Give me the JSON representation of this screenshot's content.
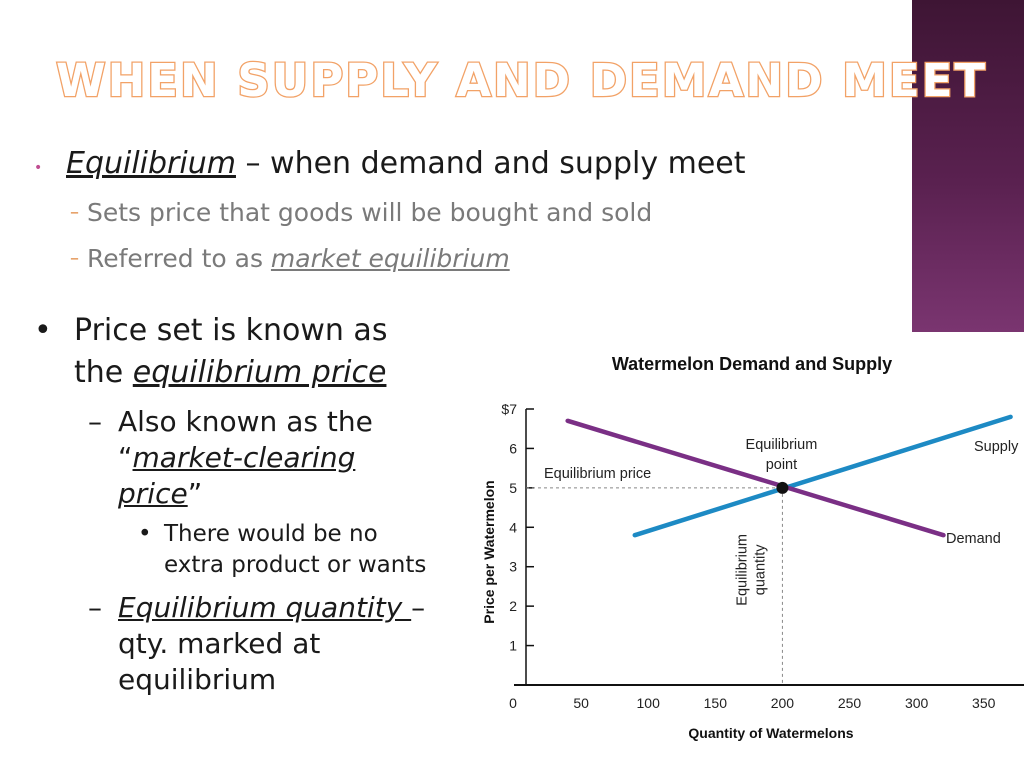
{
  "slide": {
    "title": "When supply and demand meet",
    "bullets": {
      "b1_term": "Equilibrium",
      "b1_rest": " – when demand and supply meet",
      "b1_sub1": "Sets price that goods will be bought and sold",
      "b1_sub2_pre": "Referred to as ",
      "b1_sub2_term": "market equilibrium",
      "b2_line1": "Price set is known as",
      "b2_line2_pre": "the ",
      "b2_line2_term": "equilibrium price",
      "b2_sub1_line1": "Also known as the",
      "b2_sub1_open": "“",
      "b2_sub1_term1": "market-clearing",
      "b2_sub1_term2": "price",
      "b2_sub1_close": "”",
      "b2_sub1_sub_line1": "There would be no",
      "b2_sub1_sub_line2": "extra product or wants",
      "b2_sub2_term": "Equilibrium quantity ",
      "b2_sub2_dash": "–",
      "b2_sub2_line2": "qty. marked at",
      "b2_sub2_line3": "equilibrium"
    },
    "colors": {
      "accent": "#c04d91",
      "title_outline": "#f2a267",
      "sidebar": "#5a2150"
    }
  },
  "chart_data": {
    "type": "line",
    "title": "Watermelon Demand and Supply",
    "xlabel": "Quantity of Watermelons",
    "ylabel": "Price per Watermelon",
    "xlim": [
      0,
      380
    ],
    "ylim": [
      0,
      7
    ],
    "xticks": [
      0,
      50,
      100,
      150,
      200,
      250,
      300,
      350
    ],
    "yticks": [
      1,
      2,
      3,
      4,
      5,
      6,
      7
    ],
    "ytick_labels": [
      "1",
      "2",
      "3",
      "4",
      "5",
      "6",
      "$7"
    ],
    "grid": false,
    "series": [
      {
        "name": "Supply",
        "color": "#1d8ac4",
        "x": [
          90,
          370
        ],
        "y": [
          3.8,
          6.8
        ]
      },
      {
        "name": "Demand",
        "color": "#7a2f85",
        "x": [
          40,
          320
        ],
        "y": [
          6.7,
          3.8
        ]
      }
    ],
    "equilibrium": {
      "x": 200,
      "y": 5,
      "point_label_line1": "Equilibrium",
      "point_label_line2": "point",
      "price_label": "Equilibrium price",
      "quantity_label_line1": "Equilibrium",
      "quantity_label_line2": "quantity"
    }
  }
}
